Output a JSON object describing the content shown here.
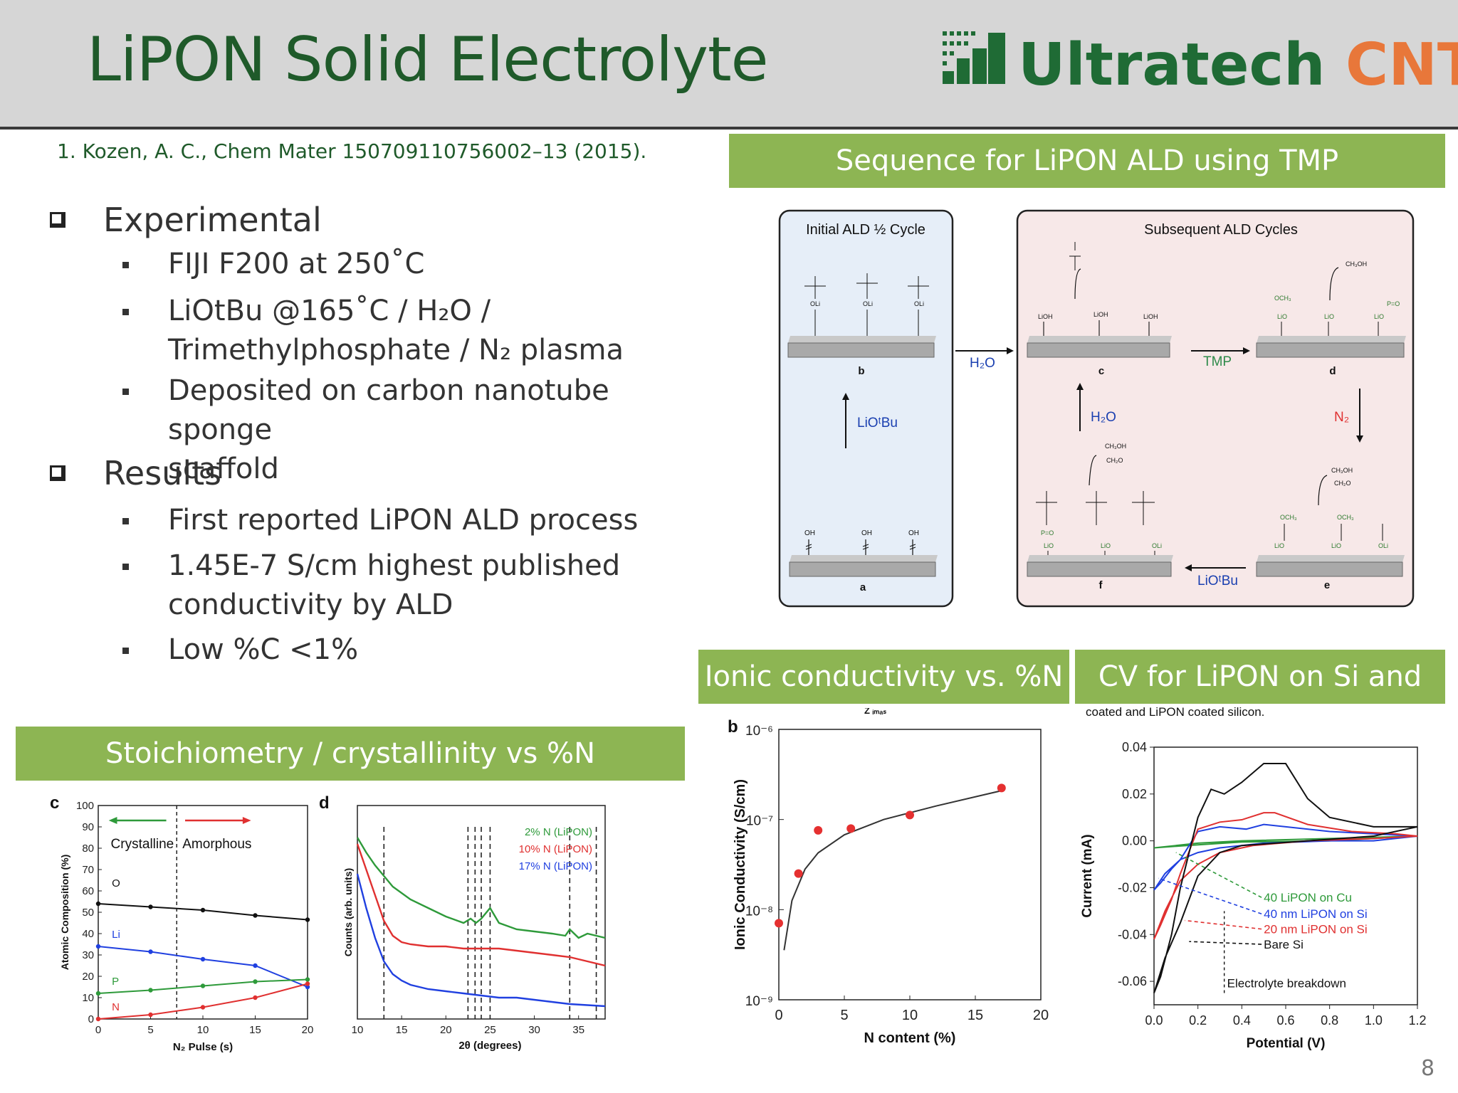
{
  "slide": {
    "title": "LiPON Solid Electrolyte",
    "logo": {
      "main": "Ultratech",
      "accent": "CNT"
    },
    "citation": "1. Kozen, A. C., Chem Mater 150709110756002–13  (2015).",
    "page_number": "8"
  },
  "bullets": {
    "experimental": {
      "heading": "Experimental",
      "items": [
        "FIJI F200 at 250˚C",
        "LiOtBu @165˚C / H₂O /",
        "Trimethylphosphate / N₂ plasma",
        "Deposited on carbon nanotube  sponge",
        "scaffold"
      ]
    },
    "results": {
      "heading": "Results",
      "items": [
        "First reported  LiPON ALD process",
        "1.45E-7 S/cm highest published",
        "conductivity by ALD",
        "Low %C <1%"
      ]
    }
  },
  "section_headers": {
    "sequence": "Sequence for LiPON ALD using TMP",
    "ionic": "Ionic conductivity vs. %N",
    "cv": "CV for LiPON on Si and Cu",
    "stoich": "Stoichiometry / crystallinity vs %N"
  },
  "scheme": {
    "initial_title": "Initial ALD ½ Cycle",
    "subsequent_title": "Subsequent ALD Cycles",
    "panel_labels": [
      "a",
      "b",
      "c",
      "d",
      "e",
      "f"
    ],
    "arrows": {
      "h2o_1": "H₂O",
      "tmp": "TMP",
      "n2": "N₂",
      "h2o_2": "H₂O",
      "liotbu_1": "LiOᵗBu",
      "liotbu_2": "LiOᵗBu"
    },
    "groups": {
      "oh": "OH",
      "lioh": "LiOH",
      "oli": "OLi",
      "ch3oh": "CH₃OH",
      "ch2o": "CH₂O",
      "lio": "LiO",
      "och3": "OCH₃",
      "p_o": "P=O"
    }
  },
  "colors": {
    "green_bar": "#8db553",
    "title_green": "#1f5a2a",
    "logo_green": "#1f6b35",
    "logo_orange": "#e8773a",
    "series_green": "#2e9a3a",
    "series_red": "#e03030",
    "series_blue": "#2040e0",
    "series_black": "#111111"
  },
  "chart_data": [
    {
      "id": "stoichiometry",
      "type": "line",
      "panel_label": "c",
      "xlabel": "N₂ Pulse (s)",
      "ylabel": "Atomic Composition (%)",
      "xlim": [
        0,
        20
      ],
      "ylim": [
        0,
        100
      ],
      "xticks": [
        0,
        5,
        10,
        15,
        20
      ],
      "yticks": [
        0,
        10,
        20,
        30,
        40,
        50,
        60,
        70,
        80,
        90,
        100
      ],
      "region_labels": [
        "Crystalline",
        "Amorphous"
      ],
      "divider_x": 7.5,
      "series": [
        {
          "name": "O",
          "color": "#111111",
          "x": [
            0,
            5,
            10,
            15,
            20
          ],
          "y": [
            54,
            52.5,
            51,
            48.5,
            46.5
          ]
        },
        {
          "name": "Li",
          "color": "#2040e0",
          "x": [
            0,
            5,
            10,
            15,
            20
          ],
          "y": [
            34,
            31.5,
            28,
            25,
            15
          ]
        },
        {
          "name": "P",
          "color": "#2e9a3a",
          "x": [
            0,
            5,
            10,
            15,
            20
          ],
          "y": [
            12,
            13.5,
            15.5,
            17.5,
            18.5
          ]
        },
        {
          "name": "N",
          "color": "#e03030",
          "x": [
            0,
            5,
            10,
            15,
            20
          ],
          "y": [
            0,
            2,
            5.5,
            10,
            16.5
          ]
        }
      ]
    },
    {
      "id": "xrd",
      "type": "line",
      "panel_label": "d",
      "xlabel": "2θ (degrees)",
      "ylabel": "Counts (arb. units)",
      "xlim": [
        10,
        38
      ],
      "xticks": [
        10,
        15,
        20,
        25,
        30,
        35
      ],
      "dashed_x": [
        13,
        22.5,
        23.3,
        24,
        25,
        34,
        37
      ],
      "series": [
        {
          "name": "2% N  (LiPON)",
          "color": "#2e9a3a",
          "x": [
            10,
            11,
            12,
            13,
            14,
            16,
            18,
            20,
            22,
            22.8,
            23.4,
            24,
            25,
            26,
            28,
            30,
            32,
            33.5,
            34,
            35,
            36,
            37,
            38
          ],
          "y": [
            0.85,
            0.78,
            0.72,
            0.67,
            0.62,
            0.56,
            0.52,
            0.48,
            0.45,
            0.47,
            0.45,
            0.47,
            0.52,
            0.45,
            0.42,
            0.41,
            0.4,
            0.39,
            0.42,
            0.38,
            0.4,
            0.39,
            0.38
          ]
        },
        {
          "name": "10% N (LiPON)",
          "color": "#e03030",
          "x": [
            10,
            11,
            12,
            13,
            14,
            15,
            16,
            18,
            20,
            22,
            24,
            26,
            28,
            30,
            32,
            34,
            36,
            38
          ],
          "y": [
            0.82,
            0.7,
            0.58,
            0.46,
            0.39,
            0.36,
            0.35,
            0.34,
            0.34,
            0.33,
            0.33,
            0.33,
            0.32,
            0.31,
            0.3,
            0.29,
            0.27,
            0.25
          ]
        },
        {
          "name": "17% N (LiPON)",
          "color": "#2040e0",
          "x": [
            10,
            11,
            12,
            13,
            14,
            15,
            16,
            18,
            20,
            22,
            24,
            26,
            28,
            30,
            32,
            34,
            36,
            38
          ],
          "y": [
            0.68,
            0.52,
            0.38,
            0.27,
            0.21,
            0.18,
            0.16,
            0.14,
            0.13,
            0.12,
            0.11,
            0.1,
            0.1,
            0.09,
            0.08,
            0.07,
            0.065,
            0.06
          ]
        }
      ]
    },
    {
      "id": "ionic_conductivity",
      "type": "scatter",
      "panel_label": "b",
      "top_label": "Z ᵢₘₐₛ",
      "xlabel": "N content (%)",
      "ylabel": "Ionic Conductivity (S/cm)",
      "xlim": [
        0,
        20
      ],
      "xticks": [
        0,
        5,
        10,
        15,
        20
      ],
      "ytick_labels": [
        "10⁻⁹",
        "10⁻⁸",
        "10⁻⁷",
        "10⁻⁶"
      ],
      "ylim_log": [
        -9,
        -6
      ],
      "points": {
        "x": [
          0,
          1.5,
          3,
          5.5,
          10,
          17
        ],
        "log_y": [
          -8.15,
          -7.6,
          -7.12,
          -7.1,
          -6.95,
          -6.65
        ]
      },
      "fit": {
        "x": [
          0.4,
          1,
          2,
          3,
          5,
          8,
          12,
          17
        ],
        "log_y": [
          -8.45,
          -7.9,
          -7.55,
          -7.37,
          -7.17,
          -7.0,
          -6.85,
          -6.68
        ]
      }
    },
    {
      "id": "cyclic_voltammetry",
      "type": "line",
      "caption_fragment": "coated and LiPON coated silicon.",
      "xlabel": "Potential (V)",
      "ylabel": "Current (mA)",
      "xlim": [
        0,
        1.2
      ],
      "ylim": [
        -0.07,
        0.04
      ],
      "xticks": [
        0.0,
        0.2,
        0.4,
        0.6,
        0.8,
        1.0,
        1.2
      ],
      "yticks": [
        0.04,
        0.02,
        0.0,
        -0.02,
        -0.04,
        -0.06
      ],
      "xtick_labels": [
        "0.0",
        "0.2",
        "0.4",
        "0.6",
        "0.8",
        "1.0",
        "1.2"
      ],
      "ytick_labels": [
        "0.04",
        "0.02",
        "0.00",
        "-0.02",
        "-0.04",
        "-0.06"
      ],
      "annotation": "Electrolyte breakdown",
      "series": [
        {
          "name": "40 LiPON on Cu",
          "color": "#2e9a3a",
          "x": [
            0,
            0.2,
            0.4,
            0.8,
            1.2,
            0.8,
            0.4,
            0.15,
            0
          ],
          "y": [
            -0.003,
            -0.001,
            0.0,
            0.001,
            0.002,
            0.0,
            -0.0005,
            -0.002,
            -0.003
          ]
        },
        {
          "name": "40 nm LiPON on Si",
          "color": "#2040e0",
          "x": [
            0,
            0.03,
            0.08,
            0.12,
            0.2,
            0.3,
            0.42,
            0.5,
            0.6,
            0.8,
            1.0,
            1.2,
            1.0,
            0.8,
            0.5,
            0.3,
            0.2,
            0.12,
            0.05,
            0
          ],
          "y": [
            -0.021,
            -0.018,
            -0.012,
            -0.008,
            0.004,
            0.006,
            0.005,
            0.007,
            0.006,
            0.004,
            0.003,
            0.002,
            0.0,
            0.0,
            -0.001,
            -0.003,
            -0.005,
            -0.008,
            -0.014,
            -0.021
          ]
        },
        {
          "name": "20 nm LiPON on Si",
          "color": "#e03030",
          "x": [
            0,
            0.03,
            0.08,
            0.12,
            0.2,
            0.3,
            0.4,
            0.5,
            0.55,
            0.7,
            0.9,
            1.1,
            1.2,
            1.0,
            0.7,
            0.45,
            0.3,
            0.2,
            0.12,
            0.05,
            0
          ],
          "y": [
            -0.042,
            -0.036,
            -0.025,
            -0.014,
            0.005,
            0.008,
            0.009,
            0.012,
            0.012,
            0.007,
            0.004,
            0.003,
            0.002,
            0.001,
            0.0,
            -0.002,
            -0.005,
            -0.01,
            -0.017,
            -0.03,
            -0.042
          ]
        },
        {
          "name": "Bare Si",
          "color": "#111111",
          "x": [
            0,
            0.03,
            0.08,
            0.12,
            0.2,
            0.26,
            0.32,
            0.4,
            0.5,
            0.6,
            0.7,
            0.8,
            1.0,
            1.2,
            1.0,
            0.7,
            0.4,
            0.3,
            0.2,
            0.12,
            0.05,
            0
          ],
          "y": [
            -0.065,
            -0.058,
            -0.04,
            -0.02,
            0.01,
            0.022,
            0.02,
            0.025,
            0.033,
            0.033,
            0.018,
            0.01,
            0.006,
            0.006,
            0.002,
            0.0,
            -0.002,
            -0.005,
            -0.015,
            -0.035,
            -0.05,
            -0.065
          ]
        }
      ]
    }
  ]
}
